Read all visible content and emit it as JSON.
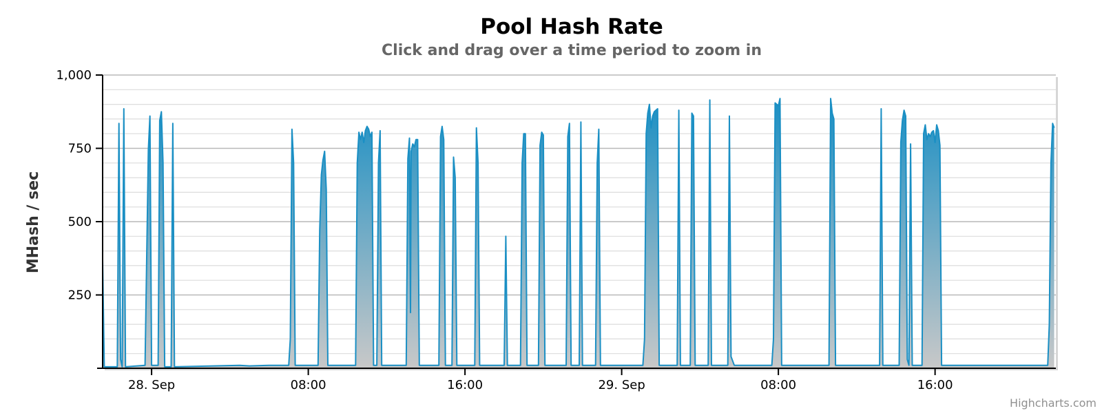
{
  "credits": "Highcharts.com",
  "colors": {
    "series": "#1a8fc4",
    "gridMajor": "#b8b8b8",
    "gridMinor": "#dcdcdc",
    "areaBottom": "#c8c8c8"
  },
  "chart_data": {
    "type": "area",
    "title": "Pool Hash Rate",
    "subtitle": "Click and drag over a time period to zoom in",
    "ylabel": "MHash / sec",
    "xlabel": "",
    "ylim": [
      0,
      1000
    ],
    "xlim": [
      "2013-09-27 21:30",
      "2013-09-29 22:10"
    ],
    "grid": true,
    "legend": "none",
    "y_ticks": [
      {
        "value": 250,
        "label": "250"
      },
      {
        "value": 500,
        "label": "500"
      },
      {
        "value": 750,
        "label": "750"
      },
      {
        "value": 1000,
        "label": "1,000"
      }
    ],
    "x_ticks": [
      {
        "value": "2013-09-28 00:00",
        "label": "28. Sep"
      },
      {
        "value": "2013-09-28 08:00",
        "label": "08:00"
      },
      {
        "value": "2013-09-28 16:00",
        "label": "16:00"
      },
      {
        "value": "2013-09-29 00:00",
        "label": "29. Sep"
      },
      {
        "value": "2013-09-29 08:00",
        "label": "08:00"
      },
      {
        "value": "2013-09-29 16:00",
        "label": "16:00"
      }
    ],
    "series": [
      {
        "points": [
          [
            "2013-09-27 21:30",
            370
          ],
          [
            "2013-09-27 21:35",
            5
          ],
          [
            "2013-09-27 22:15",
            5
          ],
          [
            "2013-09-27 22:20",
            835
          ],
          [
            "2013-09-27 22:25",
            30
          ],
          [
            "2013-09-27 22:30",
            5
          ],
          [
            "2013-09-27 22:35",
            885
          ],
          [
            "2013-09-27 22:40",
            5
          ],
          [
            "2013-09-27 23:40",
            10
          ],
          [
            "2013-09-27 23:50",
            745
          ],
          [
            "2013-09-27 23:55",
            860
          ],
          [
            "2013-09-28 00:00",
            10
          ],
          [
            "2013-09-28 00:20",
            10
          ],
          [
            "2013-09-28 00:25",
            845
          ],
          [
            "2013-09-28 00:30",
            875
          ],
          [
            "2013-09-28 00:35",
            700
          ],
          [
            "2013-09-28 00:40",
            5
          ],
          [
            "2013-09-28 01:00",
            5
          ],
          [
            "2013-09-28 01:05",
            835
          ],
          [
            "2013-09-28 01:10",
            5
          ],
          [
            "2013-09-28 04:30",
            10
          ],
          [
            "2013-09-28 05:00",
            8
          ],
          [
            "2013-09-28 06:00",
            10
          ],
          [
            "2013-09-28 07:00",
            10
          ],
          [
            "2013-09-28 07:05",
            100
          ],
          [
            "2013-09-28 07:10",
            815
          ],
          [
            "2013-09-28 07:15",
            700
          ],
          [
            "2013-09-28 07:20",
            10
          ],
          [
            "2013-09-28 08:30",
            10
          ],
          [
            "2013-09-28 08:35",
            470
          ],
          [
            "2013-09-28 08:40",
            660
          ],
          [
            "2013-09-28 08:45",
            710
          ],
          [
            "2013-09-28 08:50",
            740
          ],
          [
            "2013-09-28 08:55",
            610
          ],
          [
            "2013-09-28 09:00",
            10
          ],
          [
            "2013-09-28 10:25",
            10
          ],
          [
            "2013-09-28 10:30",
            700
          ],
          [
            "2013-09-28 10:35",
            805
          ],
          [
            "2013-09-28 10:40",
            780
          ],
          [
            "2013-09-28 10:45",
            805
          ],
          [
            "2013-09-28 10:50",
            770
          ],
          [
            "2013-09-28 10:55",
            810
          ],
          [
            "2013-09-28 11:00",
            825
          ],
          [
            "2013-09-28 11:05",
            815
          ],
          [
            "2013-09-28 11:10",
            790
          ],
          [
            "2013-09-28 11:15",
            805
          ],
          [
            "2013-09-28 11:20",
            10
          ],
          [
            "2013-09-28 11:30",
            10
          ],
          [
            "2013-09-28 11:35",
            700
          ],
          [
            "2013-09-28 11:40",
            810
          ],
          [
            "2013-09-28 11:45",
            10
          ],
          [
            "2013-09-28 13:00",
            10
          ],
          [
            "2013-09-28 13:05",
            715
          ],
          [
            "2013-09-28 13:10",
            785
          ],
          [
            "2013-09-28 13:13",
            190
          ],
          [
            "2013-09-28 13:15",
            740
          ],
          [
            "2013-09-28 13:20",
            765
          ],
          [
            "2013-09-28 13:25",
            755
          ],
          [
            "2013-09-28 13:30",
            780
          ],
          [
            "2013-09-28 13:35",
            780
          ],
          [
            "2013-09-28 13:40",
            10
          ],
          [
            "2013-09-28 14:40",
            10
          ],
          [
            "2013-09-28 14:45",
            790
          ],
          [
            "2013-09-28 14:50",
            825
          ],
          [
            "2013-09-28 14:55",
            780
          ],
          [
            "2013-09-28 15:00",
            10
          ],
          [
            "2013-09-28 15:20",
            10
          ],
          [
            "2013-09-28 15:25",
            720
          ],
          [
            "2013-09-28 15:30",
            650
          ],
          [
            "2013-09-28 15:35",
            10
          ],
          [
            "2013-09-28 16:30",
            10
          ],
          [
            "2013-09-28 16:35",
            820
          ],
          [
            "2013-09-28 16:40",
            700
          ],
          [
            "2013-09-28 16:45",
            10
          ],
          [
            "2013-09-28 18:00",
            10
          ],
          [
            "2013-09-28 18:05",
            450
          ],
          [
            "2013-09-28 18:10",
            10
          ],
          [
            "2013-09-28 18:50",
            10
          ],
          [
            "2013-09-28 18:55",
            700
          ],
          [
            "2013-09-28 19:00",
            800
          ],
          [
            "2013-09-28 19:05",
            800
          ],
          [
            "2013-09-28 19:10",
            10
          ],
          [
            "2013-09-28 19:45",
            10
          ],
          [
            "2013-09-28 19:50",
            760
          ],
          [
            "2013-09-28 19:55",
            805
          ],
          [
            "2013-09-28 20:00",
            795
          ],
          [
            "2013-09-28 20:05",
            10
          ],
          [
            "2013-09-28 21:10",
            10
          ],
          [
            "2013-09-28 21:15",
            790
          ],
          [
            "2013-09-28 21:20",
            835
          ],
          [
            "2013-09-28 21:25",
            10
          ],
          [
            "2013-09-28 21:50",
            10
          ],
          [
            "2013-09-28 21:55",
            840
          ],
          [
            "2013-09-28 22:00",
            10
          ],
          [
            "2013-09-28 22:40",
            10
          ],
          [
            "2013-09-28 22:45",
            700
          ],
          [
            "2013-09-28 22:50",
            815
          ],
          [
            "2013-09-28 22:55",
            10
          ],
          [
            "2013-09-29 01:05",
            10
          ],
          [
            "2013-09-29 01:10",
            100
          ],
          [
            "2013-09-29 01:15",
            800
          ],
          [
            "2013-09-29 01:20",
            870
          ],
          [
            "2013-09-29 01:25",
            900
          ],
          [
            "2013-09-29 01:30",
            820
          ],
          [
            "2013-09-29 01:35",
            860
          ],
          [
            "2013-09-29 01:40",
            875
          ],
          [
            "2013-09-29 01:45",
            880
          ],
          [
            "2013-09-29 01:50",
            885
          ],
          [
            "2013-09-29 01:55",
            10
          ],
          [
            "2013-09-29 02:50",
            10
          ],
          [
            "2013-09-29 02:55",
            880
          ],
          [
            "2013-09-29 03:00",
            10
          ],
          [
            "2013-09-29 03:30",
            10
          ],
          [
            "2013-09-29 03:35",
            870
          ],
          [
            "2013-09-29 03:40",
            860
          ],
          [
            "2013-09-29 03:45",
            10
          ],
          [
            "2013-09-29 04:25",
            10
          ],
          [
            "2013-09-29 04:30",
            915
          ],
          [
            "2013-09-29 04:35",
            10
          ],
          [
            "2013-09-29 05:25",
            10
          ],
          [
            "2013-09-29 05:30",
            860
          ],
          [
            "2013-09-29 05:35",
            40
          ],
          [
            "2013-09-29 05:45",
            10
          ],
          [
            "2013-09-29 07:40",
            10
          ],
          [
            "2013-09-29 07:45",
            100
          ],
          [
            "2013-09-29 07:50",
            905
          ],
          [
            "2013-09-29 07:55",
            900
          ],
          [
            "2013-09-29 08:00",
            895
          ],
          [
            "2013-09-29 08:05",
            920
          ],
          [
            "2013-09-29 08:10",
            10
          ],
          [
            "2013-09-29 10:35",
            10
          ],
          [
            "2013-09-29 10:40",
            920
          ],
          [
            "2013-09-29 10:45",
            870
          ],
          [
            "2013-09-29 10:50",
            850
          ],
          [
            "2013-09-29 10:55",
            10
          ],
          [
            "2013-09-29 13:10",
            10
          ],
          [
            "2013-09-29 13:15",
            885
          ],
          [
            "2013-09-29 13:20",
            10
          ],
          [
            "2013-09-29 14:10",
            10
          ],
          [
            "2013-09-29 14:15",
            770
          ],
          [
            "2013-09-29 14:20",
            845
          ],
          [
            "2013-09-29 14:25",
            880
          ],
          [
            "2013-09-29 14:30",
            860
          ],
          [
            "2013-09-29 14:35",
            30
          ],
          [
            "2013-09-29 14:40",
            10
          ],
          [
            "2013-09-29 14:45",
            765
          ],
          [
            "2013-09-29 14:50",
            10
          ],
          [
            "2013-09-29 15:20",
            10
          ],
          [
            "2013-09-29 15:25",
            800
          ],
          [
            "2013-09-29 15:30",
            830
          ],
          [
            "2013-09-29 15:35",
            780
          ],
          [
            "2013-09-29 15:40",
            800
          ],
          [
            "2013-09-29 15:45",
            790
          ],
          [
            "2013-09-29 15:50",
            805
          ],
          [
            "2013-09-29 15:55",
            810
          ],
          [
            "2013-09-29 16:00",
            770
          ],
          [
            "2013-09-29 16:05",
            830
          ],
          [
            "2013-09-29 16:10",
            810
          ],
          [
            "2013-09-29 16:15",
            760
          ],
          [
            "2013-09-29 16:20",
            10
          ],
          [
            "2013-09-29 18:00",
            10
          ],
          [
            "2013-09-29 20:00",
            10
          ],
          [
            "2013-09-29 21:45",
            10
          ],
          [
            "2013-09-29 21:50",
            150
          ],
          [
            "2013-09-29 21:55",
            700
          ],
          [
            "2013-09-29 22:00",
            835
          ],
          [
            "2013-09-29 22:05",
            820
          ]
        ]
      }
    ]
  }
}
